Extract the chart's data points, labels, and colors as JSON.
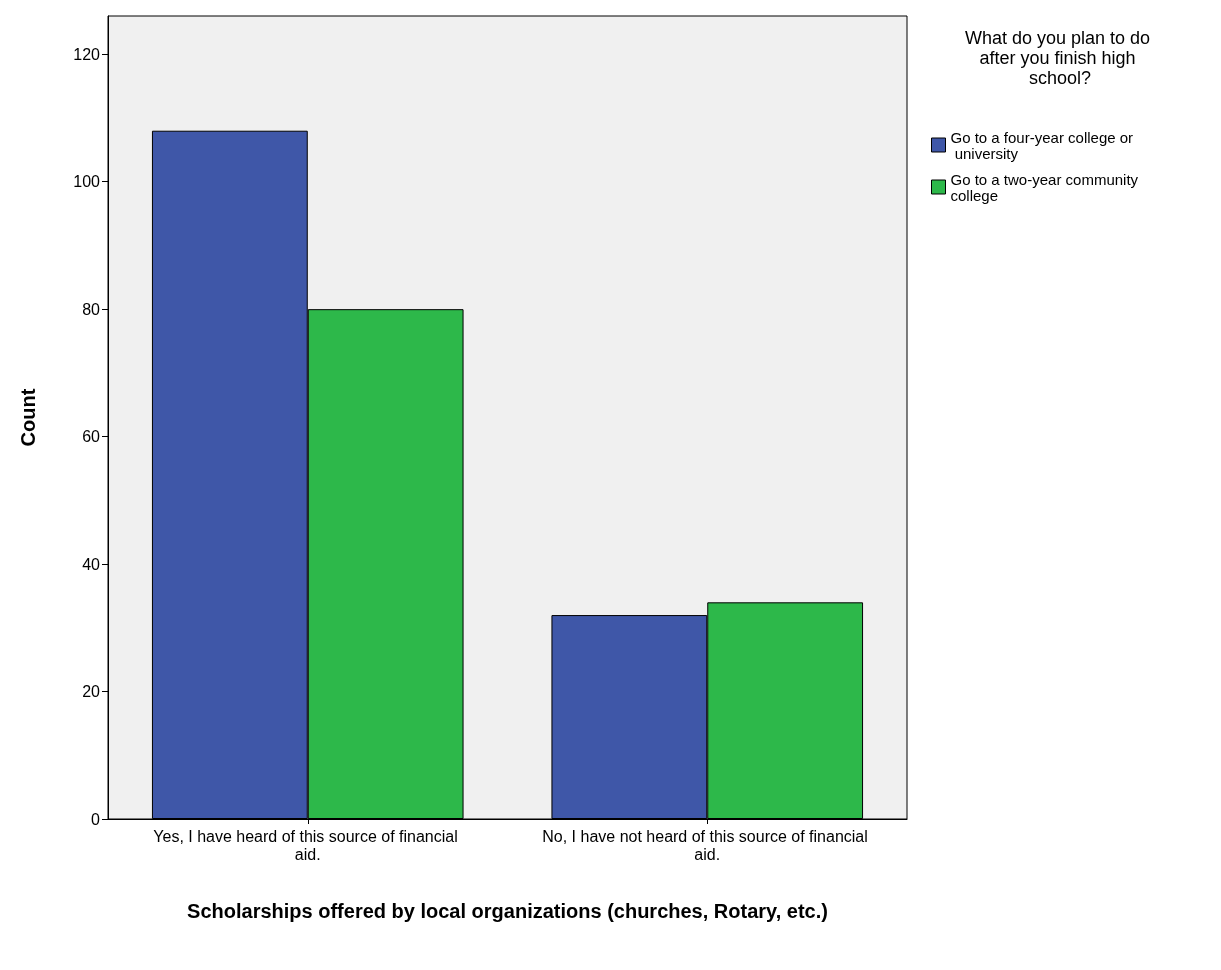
{
  "chart_data": {
    "type": "bar",
    "xlabel": "Scholarships offered by local organizations (churches, Rotary, etc.)",
    "ylabel": "Count",
    "legend_title": "What do you plan to do after you finish high school?",
    "categories": [
      "Yes, I have heard of this source of financial aid.",
      "No, I have not heard of this source of financial aid."
    ],
    "series": [
      {
        "name": "Go to a four-year college or university",
        "color": "#3f57a8",
        "values": [
          108,
          32
        ]
      },
      {
        "name": "Go to a two-year community college",
        "color": "#2db84a",
        "values": [
          80,
          34
        ]
      }
    ],
    "ylim": [
      0,
      126
    ],
    "yticks": [
      0,
      20,
      40,
      60,
      80,
      100,
      120
    ],
    "grid": false,
    "legend": "right"
  }
}
